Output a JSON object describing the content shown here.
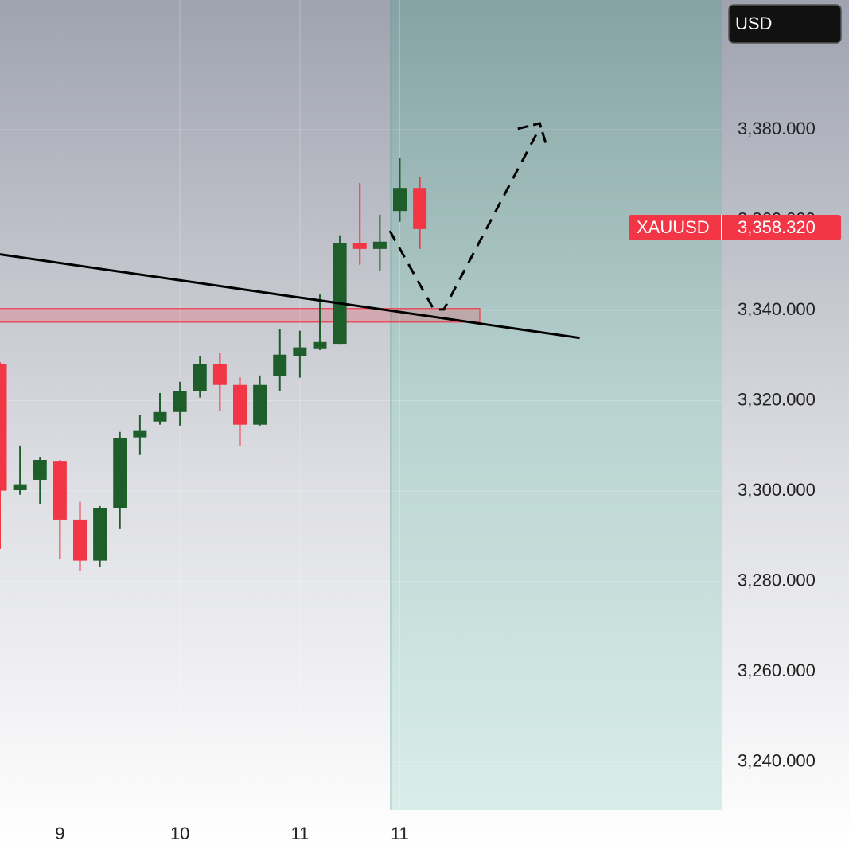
{
  "chart_data": {
    "type": "candlestick",
    "currency": "USD",
    "categories": [
      null,
      null,
      null,
      "9",
      null,
      null,
      null,
      null,
      null,
      "10",
      null,
      null,
      null,
      null,
      null,
      "11",
      null,
      null,
      null,
      null,
      "11",
      null
    ],
    "open": [
      3328.1,
      3300.2,
      3302.5,
      3306.7,
      3293.7,
      3284.6,
      3296.2,
      3311.9,
      3315.4,
      3317.5,
      3322.1,
      3328.2,
      3323.5,
      3314.7,
      3325.4,
      3329.9,
      3331.6,
      3332.6,
      3354.8,
      3353.6,
      3362.0,
      3367.1
    ],
    "high": [
      3328.5,
      3310.1,
      3307.6,
      3306.9,
      3297.6,
      3296.7,
      3313.1,
      3316.8,
      3321.7,
      3324.2,
      3329.8,
      3330.5,
      3325.2,
      3325.6,
      3335.8,
      3335.5,
      3343.5,
      3356.6,
      3368.2,
      3361.2,
      3373.8,
      3369.6
    ],
    "low": [
      3287.2,
      3299.2,
      3297.2,
      3284.9,
      3282.4,
      3283.2,
      3291.6,
      3308.0,
      3314.7,
      3314.5,
      3320.7,
      3317.8,
      3310.1,
      3314.5,
      3322.1,
      3325.1,
      3331.2,
      3332.6,
      3350.1,
      3348.8,
      3359.6,
      3353.6
    ],
    "close": [
      3300.1,
      3301.5,
      3306.9,
      3293.7,
      3284.6,
      3296.2,
      3311.7,
      3313.3,
      3317.5,
      3322.1,
      3328.2,
      3323.5,
      3314.7,
      3323.5,
      3330.2,
      3331.8,
      3333.0,
      3354.8,
      3353.6,
      3355.2,
      3367.1,
      3358.0
    ],
    "up_color": "#1e5e2a",
    "down_color": "#f23645",
    "ylim": [
      3229.4,
      3408.7
    ],
    "xlim": [
      0,
      36.1
    ],
    "yticks": [
      {
        "value": 3240,
        "label": "3,240.000"
      },
      {
        "value": 3260,
        "label": "3,260.000"
      },
      {
        "value": 3280,
        "label": "3,280.000"
      },
      {
        "value": 3300,
        "label": "3,300.000"
      },
      {
        "value": 3320,
        "label": "3,320.000"
      },
      {
        "value": 3340,
        "label": "3,340.000"
      },
      {
        "value": 3360,
        "label": "3,360.000"
      },
      {
        "value": 3380,
        "label": "3,380.000"
      }
    ],
    "grid": true,
    "last_price": {
      "symbol": "XAUUSD",
      "value": 3358.32,
      "label": "3,358.320"
    },
    "zone": {
      "x": [
        -1,
        24
      ],
      "y": [
        3337.4,
        3340.4
      ]
    },
    "trendline": {
      "x": [
        0,
        29
      ],
      "y": [
        3352.4,
        3333.9
      ]
    },
    "projection": {
      "x": [
        19.5,
        21.7,
        22.2,
        27.0
      ],
      "y": [
        3357.6,
        3340.2,
        3340.2,
        3380.4
      ]
    },
    "projection_head": {
      "x": [
        25.9,
        27.0,
        27.3
      ],
      "y": [
        3380.2,
        3381.4,
        3377.0
      ]
    },
    "highlight_start": 19.56
  }
}
